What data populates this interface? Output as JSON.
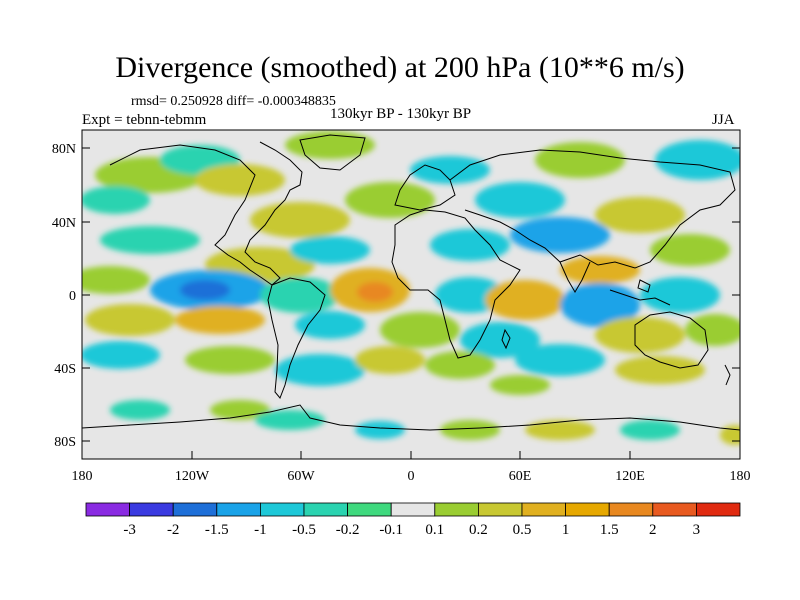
{
  "title": "Divergence (smoothed) at 200 hPa (10**6 m/s)",
  "stats": "rmsd= 0.250928 diff= -0.000348835",
  "experiment": "Expt = tebnn-tebmm",
  "period": "130kyr BP - 130kyr BP",
  "season": "JJA",
  "map": {
    "y_ticks": [
      "80N",
      "40N",
      "0",
      "40S",
      "80S"
    ],
    "x_ticks": [
      "180",
      "120W",
      "60W",
      "0",
      "60E",
      "120E",
      "180"
    ]
  },
  "colorbar": {
    "labels": [
      "-3",
      "-2",
      "-1.5",
      "-1",
      "-0.5",
      "-0.2",
      "-0.1",
      "0.1",
      "0.2",
      "0.5",
      "1",
      "1.5",
      "2",
      "3"
    ],
    "colors": [
      "#8a2be2",
      "#3a3ae0",
      "#1e6fd8",
      "#1aa3e8",
      "#1ec8d8",
      "#2ad3b0",
      "#3fd97e",
      "#e6e6e6",
      "#9acd32",
      "#c8c832",
      "#e0b020",
      "#e6a800",
      "#e88820",
      "#e85a20",
      "#e02a10"
    ]
  },
  "colors": {
    "background": "#ffffff",
    "land_neutral": "#e6e6e6",
    "coast": "#000000"
  }
}
